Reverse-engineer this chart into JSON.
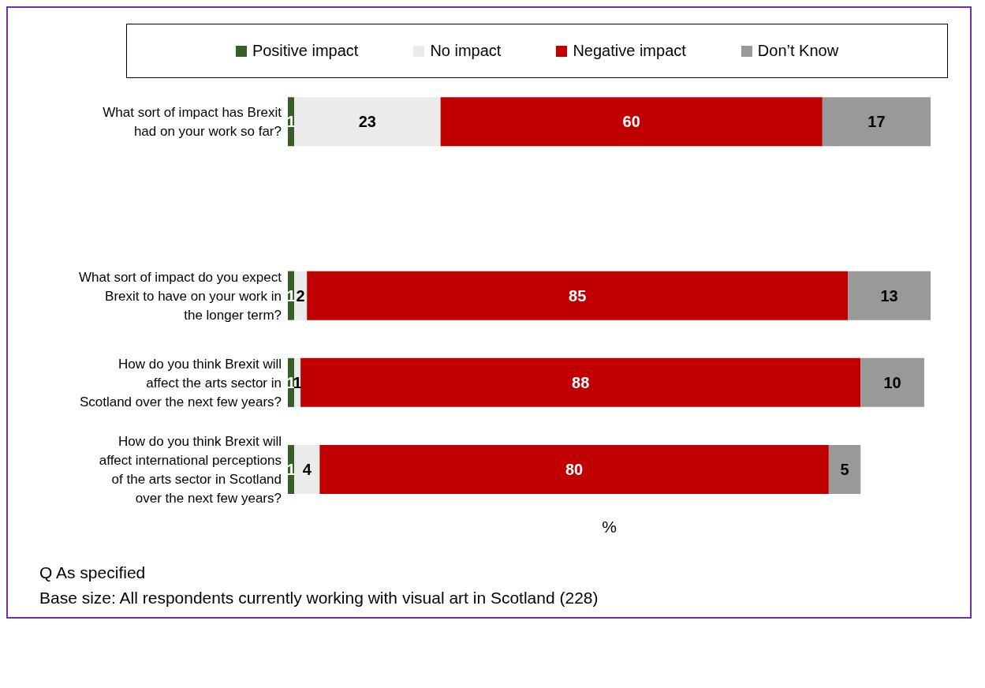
{
  "chart_data": {
    "type": "bar",
    "orientation": "horizontal",
    "stacked": true,
    "data_labels": true,
    "legend": "top",
    "tick_labels": "y",
    "xlabel": "%",
    "categories": [
      "What sort of impact has Brexit had on your work so far?",
      null,
      "What sort of impact do you expect Brexit to have on your work in the longer term?",
      "How do you think Brexit will affect the arts sector in Scotland over the next few years?",
      "How do you think Brexit will affect international perceptions of the arts sector in Scotland over the next few years?"
    ],
    "series": [
      {
        "name": "Positive impact",
        "color": "#385d27",
        "values": [
          1,
          null,
          1,
          1,
          1
        ]
      },
      {
        "name": "No impact",
        "color": "#ebebeb",
        "values": [
          23,
          null,
          2,
          1,
          4
        ]
      },
      {
        "name": "Negative impact",
        "color": "#c00000",
        "values": [
          60,
          null,
          85,
          88,
          80
        ]
      },
      {
        "name": "Don’t Know",
        "color": "#999999",
        "values": [
          17,
          null,
          13,
          10,
          5
        ]
      }
    ],
    "annotations": [
      "Q As specified",
      "Base size: All respondents currently working with visual art in Scotland (228)"
    ]
  }
}
